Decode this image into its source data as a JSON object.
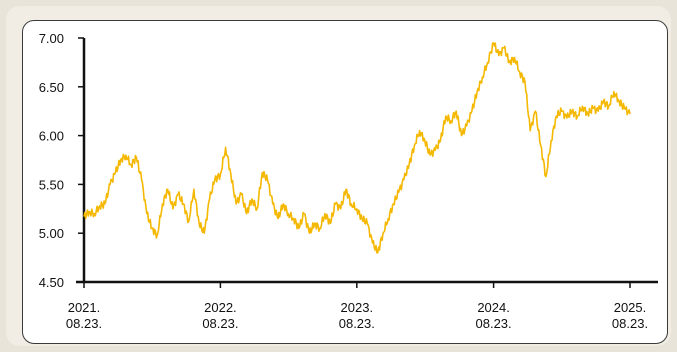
{
  "chart_data": {
    "type": "line",
    "title": "",
    "xlabel": "",
    "ylabel": "",
    "ylim": [
      4.5,
      7.0
    ],
    "grid": false,
    "y_ticks": [
      "7.00",
      "6.50",
      "6.00",
      "5.50",
      "5.00",
      "4.50"
    ],
    "y_tick_values": [
      7.0,
      6.5,
      6.0,
      5.5,
      5.0,
      4.5
    ],
    "x_ticks": [
      {
        "year": "2021.",
        "day": "08.23.",
        "date": "2021-08-23"
      },
      {
        "year": "2022.",
        "day": "08.23.",
        "date": "2022-08-23"
      },
      {
        "year": "2023.",
        "day": "08.23.",
        "date": "2023-08-23"
      },
      {
        "year": "2024.",
        "day": "08.23.",
        "date": "2024-08-23"
      },
      {
        "year": "2025.",
        "day": "08.23.",
        "date": "2025-08-23"
      }
    ],
    "series": [
      {
        "color": "#f5b800",
        "points": [
          [
            "2021-08-23",
            5.17
          ],
          [
            "2021-09-06",
            5.22
          ],
          [
            "2021-09-20",
            5.2
          ],
          [
            "2021-10-04",
            5.28
          ],
          [
            "2021-10-18",
            5.3
          ],
          [
            "2021-11-01",
            5.5
          ],
          [
            "2021-11-15",
            5.62
          ],
          [
            "2021-11-29",
            5.75
          ],
          [
            "2021-12-13",
            5.8
          ],
          [
            "2021-12-27",
            5.7
          ],
          [
            "2022-01-10",
            5.78
          ],
          [
            "2022-01-24",
            5.55
          ],
          [
            "2022-02-07",
            5.2
          ],
          [
            "2022-02-21",
            5.05
          ],
          [
            "2022-03-07",
            4.98
          ],
          [
            "2022-03-21",
            5.3
          ],
          [
            "2022-04-04",
            5.45
          ],
          [
            "2022-04-18",
            5.25
          ],
          [
            "2022-05-02",
            5.4
          ],
          [
            "2022-05-16",
            5.3
          ],
          [
            "2022-05-30",
            5.12
          ],
          [
            "2022-06-13",
            5.45
          ],
          [
            "2022-06-27",
            5.1
          ],
          [
            "2022-07-11",
            5.0
          ],
          [
            "2022-07-25",
            5.35
          ],
          [
            "2022-08-08",
            5.55
          ],
          [
            "2022-08-23",
            5.6
          ],
          [
            "2022-09-06",
            5.88
          ],
          [
            "2022-09-20",
            5.6
          ],
          [
            "2022-10-04",
            5.3
          ],
          [
            "2022-10-18",
            5.4
          ],
          [
            "2022-11-01",
            5.2
          ],
          [
            "2022-11-15",
            5.35
          ],
          [
            "2022-11-29",
            5.25
          ],
          [
            "2022-12-13",
            5.62
          ],
          [
            "2022-12-27",
            5.55
          ],
          [
            "2023-01-10",
            5.3
          ],
          [
            "2023-01-24",
            5.15
          ],
          [
            "2023-02-07",
            5.3
          ],
          [
            "2023-02-21",
            5.2
          ],
          [
            "2023-03-07",
            5.15
          ],
          [
            "2023-03-21",
            5.05
          ],
          [
            "2023-04-04",
            5.2
          ],
          [
            "2023-04-18",
            5.0
          ],
          [
            "2023-05-02",
            5.1
          ],
          [
            "2023-05-16",
            5.05
          ],
          [
            "2023-05-30",
            5.2
          ],
          [
            "2023-06-13",
            5.1
          ],
          [
            "2023-06-27",
            5.3
          ],
          [
            "2023-07-11",
            5.25
          ],
          [
            "2023-07-25",
            5.45
          ],
          [
            "2023-08-08",
            5.3
          ],
          [
            "2023-08-23",
            5.25
          ],
          [
            "2023-09-06",
            5.15
          ],
          [
            "2023-09-20",
            5.1
          ],
          [
            "2023-10-04",
            4.9
          ],
          [
            "2023-10-18",
            4.8
          ],
          [
            "2023-11-01",
            5.0
          ],
          [
            "2023-11-15",
            5.15
          ],
          [
            "2023-11-29",
            5.3
          ],
          [
            "2023-12-13",
            5.42
          ],
          [
            "2023-12-27",
            5.55
          ],
          [
            "2024-01-10",
            5.7
          ],
          [
            "2024-01-24",
            5.9
          ],
          [
            "2024-02-07",
            6.05
          ],
          [
            "2024-02-21",
            5.95
          ],
          [
            "2024-03-06",
            5.8
          ],
          [
            "2024-03-20",
            5.85
          ],
          [
            "2024-04-03",
            5.95
          ],
          [
            "2024-04-17",
            6.2
          ],
          [
            "2024-05-01",
            6.15
          ],
          [
            "2024-05-15",
            6.25
          ],
          [
            "2024-05-29",
            6.0
          ],
          [
            "2024-06-12",
            6.1
          ],
          [
            "2024-06-26",
            6.25
          ],
          [
            "2024-07-10",
            6.45
          ],
          [
            "2024-07-24",
            6.6
          ],
          [
            "2024-08-07",
            6.75
          ],
          [
            "2024-08-23",
            6.95
          ],
          [
            "2024-09-06",
            6.82
          ],
          [
            "2024-09-20",
            6.9
          ],
          [
            "2024-10-04",
            6.75
          ],
          [
            "2024-10-18",
            6.8
          ],
          [
            "2024-11-01",
            6.65
          ],
          [
            "2024-11-15",
            6.55
          ],
          [
            "2024-11-29",
            6.05
          ],
          [
            "2024-12-13",
            6.25
          ],
          [
            "2024-12-27",
            5.9
          ],
          [
            "2025-01-10",
            5.58
          ],
          [
            "2025-01-24",
            5.95
          ],
          [
            "2025-02-07",
            6.2
          ],
          [
            "2025-02-21",
            6.25
          ],
          [
            "2025-03-07",
            6.18
          ],
          [
            "2025-03-21",
            6.25
          ],
          [
            "2025-04-04",
            6.2
          ],
          [
            "2025-04-18",
            6.3
          ],
          [
            "2025-05-02",
            6.22
          ],
          [
            "2025-05-16",
            6.28
          ],
          [
            "2025-05-30",
            6.25
          ],
          [
            "2025-06-13",
            6.35
          ],
          [
            "2025-06-27",
            6.3
          ],
          [
            "2025-07-11",
            6.45
          ],
          [
            "2025-07-25",
            6.35
          ],
          [
            "2025-08-08",
            6.28
          ],
          [
            "2025-08-23",
            6.22
          ]
        ]
      }
    ]
  }
}
